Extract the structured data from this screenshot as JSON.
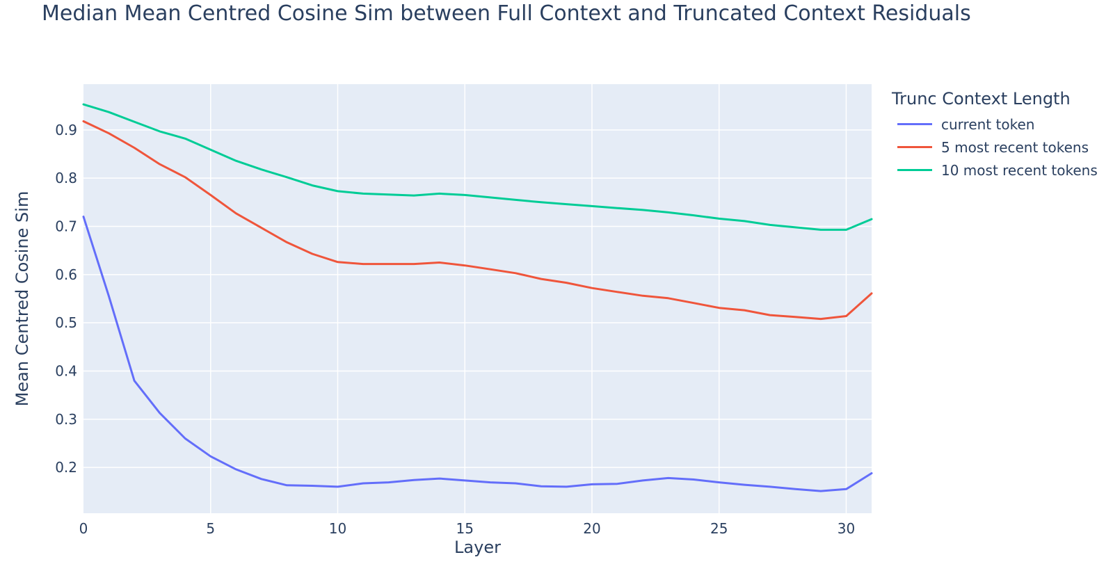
{
  "chart_data": {
    "type": "line",
    "title": "Median Mean Centred Cosine Sim between Full Context and Truncated Context Residuals",
    "xlabel": "Layer",
    "ylabel": "Mean Centred Cosine Sim",
    "xlim": [
      0,
      31
    ],
    "ylim": [
      0.105,
      0.995
    ],
    "xticks": [
      0,
      5,
      10,
      15,
      20,
      25,
      30
    ],
    "yticks": [
      0.2,
      0.3,
      0.4,
      0.5,
      0.6,
      0.7,
      0.8,
      0.9
    ],
    "grid": true,
    "legend_title": "Trunc Context Length",
    "legend_position": "top-right, outside plot",
    "plot_background": "#e5ecf6",
    "x": [
      0,
      1,
      2,
      3,
      4,
      5,
      6,
      7,
      8,
      9,
      10,
      11,
      12,
      13,
      14,
      15,
      16,
      17,
      18,
      19,
      20,
      21,
      22,
      23,
      24,
      25,
      26,
      27,
      28,
      29,
      30,
      31
    ],
    "series": [
      {
        "name": "current token",
        "color": "#636efa",
        "values": [
          0.72,
          0.555,
          0.38,
          0.313,
          0.26,
          0.223,
          0.196,
          0.176,
          0.163,
          0.162,
          0.16,
          0.167,
          0.169,
          0.174,
          0.177,
          0.173,
          0.169,
          0.167,
          0.161,
          0.16,
          0.165,
          0.166,
          0.173,
          0.178,
          0.175,
          0.169,
          0.164,
          0.16,
          0.155,
          0.151,
          0.155,
          0.188
        ]
      },
      {
        "name": "5 most recent tokens",
        "color": "#ef553b",
        "values": [
          0.918,
          0.893,
          0.863,
          0.829,
          0.802,
          0.765,
          0.727,
          0.697,
          0.667,
          0.643,
          0.626,
          0.622,
          0.622,
          0.622,
          0.625,
          0.619,
          0.611,
          0.603,
          0.591,
          0.583,
          0.572,
          0.564,
          0.556,
          0.551,
          0.541,
          0.531,
          0.526,
          0.516,
          0.512,
          0.508,
          0.514,
          0.561
        ]
      },
      {
        "name": "10 most recent tokens",
        "color": "#00cc96",
        "values": [
          0.953,
          0.937,
          0.917,
          0.897,
          0.882,
          0.859,
          0.836,
          0.818,
          0.802,
          0.785,
          0.773,
          0.768,
          0.766,
          0.764,
          0.768,
          0.765,
          0.76,
          0.755,
          0.75,
          0.746,
          0.742,
          0.738,
          0.734,
          0.729,
          0.723,
          0.716,
          0.711,
          0.703,
          0.698,
          0.693,
          0.693,
          0.715
        ]
      }
    ]
  }
}
